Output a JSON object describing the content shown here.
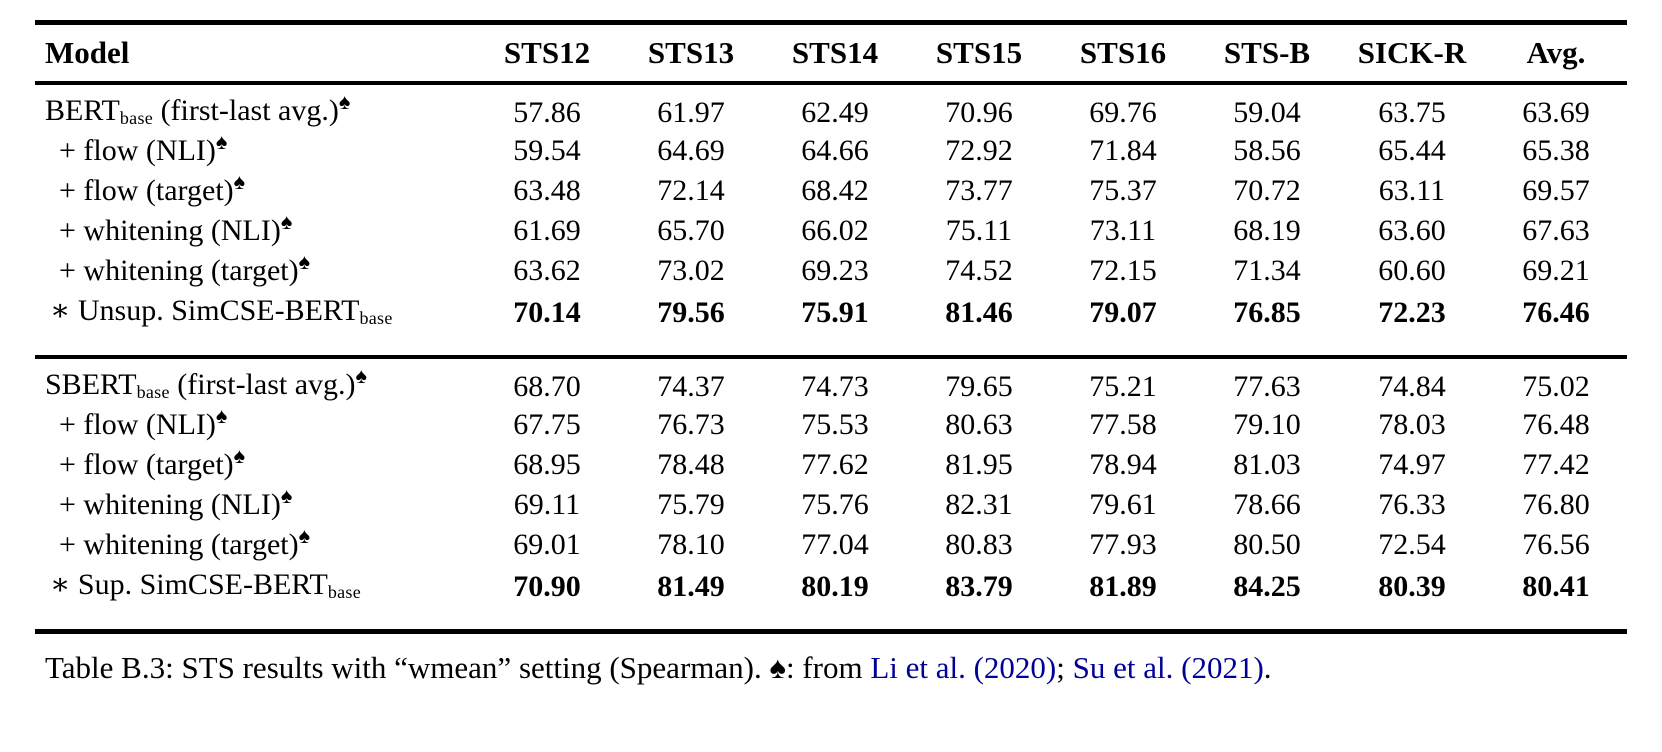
{
  "colors": {
    "text": "#000000",
    "link": "#000099",
    "rule": "#000000",
    "background": "#ffffff"
  },
  "icons": {
    "spade": "♠"
  },
  "table": {
    "header": [
      "Model",
      "STS12",
      "STS13",
      "STS14",
      "STS15",
      "STS16",
      "STS-B",
      "SICK-R",
      "Avg."
    ],
    "groups": [
      {
        "rows": [
          {
            "main": "BERT",
            "sub": "base",
            "post": " (first-last avg.)",
            "spade": true,
            "indent": 0,
            "bold": false,
            "values": [
              "57.86",
              "61.97",
              "62.49",
              "70.96",
              "69.76",
              "59.04",
              "63.75",
              "63.69"
            ]
          },
          {
            "main": "+ flow (NLI)",
            "sub": "",
            "post": "",
            "spade": true,
            "indent": 1,
            "bold": false,
            "values": [
              "59.54",
              "64.69",
              "64.66",
              "72.92",
              "71.84",
              "58.56",
              "65.44",
              "65.38"
            ]
          },
          {
            "main": "+ flow (target)",
            "sub": "",
            "post": "",
            "spade": true,
            "indent": 1,
            "bold": false,
            "values": [
              "63.48",
              "72.14",
              "68.42",
              "73.77",
              "75.37",
              "70.72",
              "63.11",
              "69.57"
            ]
          },
          {
            "main": "+ whitening (NLI)",
            "sub": "",
            "post": "",
            "spade": true,
            "indent": 1,
            "bold": false,
            "values": [
              "61.69",
              "65.70",
              "66.02",
              "75.11",
              "73.11",
              "68.19",
              "63.60",
              "67.63"
            ]
          },
          {
            "main": "+ whitening (target)",
            "sub": "",
            "post": "",
            "spade": true,
            "indent": 1,
            "bold": false,
            "values": [
              "63.62",
              "73.02",
              "69.23",
              "74.52",
              "72.15",
              "71.34",
              "60.60",
              "69.21"
            ]
          },
          {
            "main": "∗ Unsup. SimCSE-BERT",
            "sub": "base",
            "post": "",
            "spade": false,
            "indent": 2,
            "bold": true,
            "values": [
              "70.14",
              "79.56",
              "75.91",
              "81.46",
              "79.07",
              "76.85",
              "72.23",
              "76.46"
            ]
          }
        ]
      },
      {
        "rows": [
          {
            "main": "SBERT",
            "sub": "base",
            "post": " (first-last avg.)",
            "spade": true,
            "indent": 0,
            "bold": false,
            "values": [
              "68.70",
              "74.37",
              "74.73",
              "79.65",
              "75.21",
              "77.63",
              "74.84",
              "75.02"
            ]
          },
          {
            "main": "+ flow (NLI)",
            "sub": "",
            "post": "",
            "spade": true,
            "indent": 1,
            "bold": false,
            "values": [
              "67.75",
              "76.73",
              "75.53",
              "80.63",
              "77.58",
              "79.10",
              "78.03",
              "76.48"
            ]
          },
          {
            "main": "+ flow (target)",
            "sub": "",
            "post": "",
            "spade": true,
            "indent": 1,
            "bold": false,
            "values": [
              "68.95",
              "78.48",
              "77.62",
              "81.95",
              "78.94",
              "81.03",
              "74.97",
              "77.42"
            ]
          },
          {
            "main": "+ whitening (NLI)",
            "sub": "",
            "post": "",
            "spade": true,
            "indent": 1,
            "bold": false,
            "values": [
              "69.11",
              "75.79",
              "75.76",
              "82.31",
              "79.61",
              "78.66",
              "76.33",
              "76.80"
            ]
          },
          {
            "main": "+ whitening (target)",
            "sub": "",
            "post": "",
            "spade": true,
            "indent": 1,
            "bold": false,
            "values": [
              "69.01",
              "78.10",
              "77.04",
              "80.83",
              "77.93",
              "80.50",
              "72.54",
              "76.56"
            ]
          },
          {
            "main": "∗ Sup. SimCSE-BERT",
            "sub": "base",
            "post": "",
            "spade": false,
            "indent": 2,
            "bold": true,
            "values": [
              "70.90",
              "81.49",
              "80.19",
              "83.79",
              "81.89",
              "84.25",
              "80.39",
              "80.41"
            ]
          }
        ]
      }
    ]
  },
  "caption": {
    "parts": [
      {
        "type": "text",
        "text": "Table B.3: STS results with “wmean” setting (Spearman). "
      },
      {
        "type": "spade"
      },
      {
        "type": "text",
        "text": ": from "
      },
      {
        "type": "link",
        "text": "Li et al. (2020)",
        "id": "li-et-al-2020"
      },
      {
        "type": "text",
        "text": "; "
      },
      {
        "type": "link",
        "text": "Su et al. (2021)",
        "id": "su-et-al-2021"
      },
      {
        "type": "text",
        "text": "."
      }
    ]
  }
}
